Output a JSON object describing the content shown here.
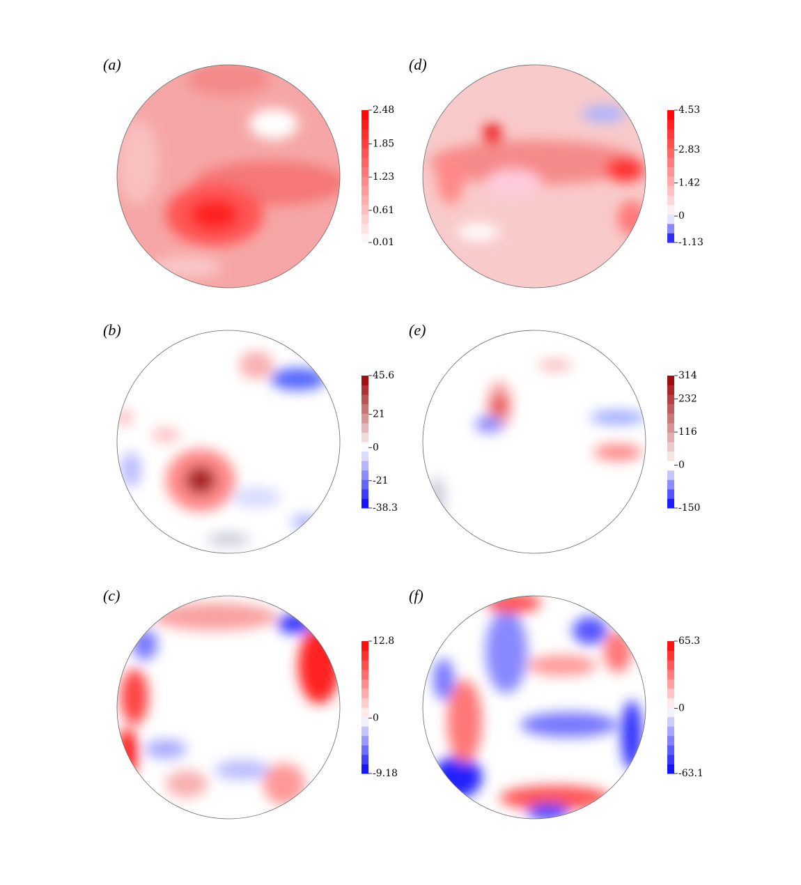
{
  "chart_data": [
    {
      "type": "contour",
      "label": "(a)",
      "zlim": [
        0.01,
        2.48
      ],
      "zticks": [
        2.48,
        1.85,
        1.23,
        0.61,
        0.01
      ],
      "colors": {
        "negative": "#0000ff",
        "positive": "#ff0000"
      }
    },
    {
      "type": "contour",
      "label": "(b)",
      "zlim": [
        -38.3,
        45.6
      ],
      "zticks": [
        45.6,
        21,
        0,
        -21,
        -38.3
      ],
      "colors": {
        "negative": "#0000ff",
        "positive": "#9a0000"
      }
    },
    {
      "type": "contour",
      "label": "(c)",
      "zlim": [
        -9.18,
        12.8
      ],
      "zticks": [
        12.8,
        0,
        -9.18
      ],
      "colors": {
        "negative": "#0000ff",
        "positive": "#ff0000"
      }
    },
    {
      "type": "contour",
      "label": "(d)",
      "zlim": [
        -1.13,
        4.53
      ],
      "zticks": [
        4.53,
        2.83,
        1.42,
        0,
        -1.13
      ],
      "colors": {
        "negative": "#0000ff",
        "positive": "#ff0000"
      }
    },
    {
      "type": "contour",
      "label": "(e)",
      "zlim": [
        -150,
        314
      ],
      "zticks": [
        314,
        232,
        116,
        0,
        -150
      ],
      "colors": {
        "negative": "#0000ff",
        "positive": "#9a0000"
      }
    },
    {
      "type": "contour",
      "label": "(f)",
      "zlim": [
        -63.1,
        65.3
      ],
      "zticks": [
        65.3,
        0,
        -63.1
      ],
      "colors": {
        "negative": "#0000ff",
        "positive": "#ff0000"
      }
    }
  ]
}
